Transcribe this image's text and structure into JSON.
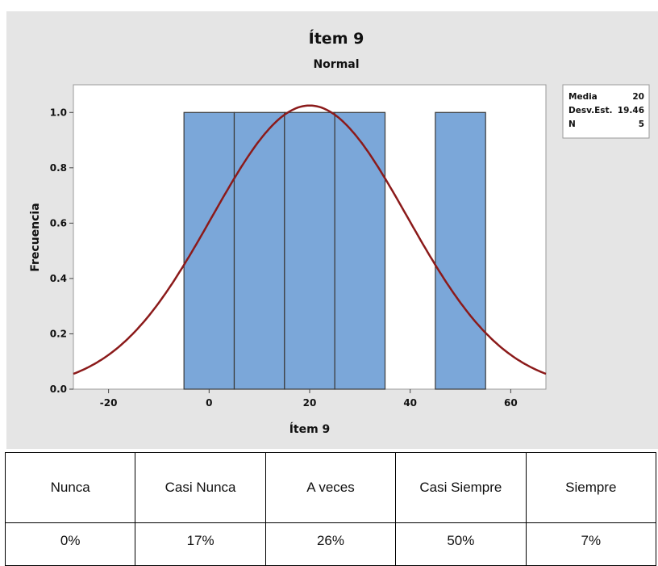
{
  "chart_data": {
    "type": "histogram",
    "title": "Ítem 9",
    "subtitle": "Normal",
    "xlabel": "Ítem 9",
    "ylabel": "Frecuencia",
    "xlim": [
      -27,
      67
    ],
    "ylim": [
      0,
      1.1
    ],
    "x_ticks": [
      -20,
      0,
      20,
      40,
      60
    ],
    "y_ticks": [
      0.0,
      0.2,
      0.4,
      0.6,
      0.8,
      1.0
    ],
    "x_tick_labels": [
      "-20",
      "0",
      "20",
      "40",
      "60"
    ],
    "y_tick_labels": [
      "0.0",
      "0.2",
      "0.4",
      "0.6",
      "0.8",
      "1.0"
    ],
    "bin_width": 10,
    "bins": [
      {
        "x_start": -5,
        "x_end": 5,
        "count": 1
      },
      {
        "x_start": 5,
        "x_end": 15,
        "count": 1
      },
      {
        "x_start": 15,
        "x_end": 25,
        "count": 1
      },
      {
        "x_start": 25,
        "x_end": 35,
        "count": 1
      },
      {
        "x_start": 45,
        "x_end": 55,
        "count": 1
      }
    ],
    "fit": {
      "distribution": "Normal",
      "mean": 20,
      "stdev": 19.46,
      "n": 5
    },
    "stats_box": [
      {
        "label": "Media",
        "value": "20"
      },
      {
        "label": "Desv.Est.",
        "value": "19.46"
      },
      {
        "label": "N",
        "value": "5"
      }
    ],
    "grid": false,
    "colors": {
      "bar_fill": "#7ba7d9",
      "bar_stroke": "#3a3a3a",
      "curve": "#8b1a1a",
      "frame_bg": "#e5e5e5",
      "plot_bg": "#ffffff"
    }
  },
  "table": {
    "headers": [
      "Nunca",
      "Casi Nunca",
      "A veces",
      "Casi Siempre",
      "Siempre"
    ],
    "values": [
      "0%",
      "17%",
      "26%",
      "50%",
      "7%"
    ]
  }
}
